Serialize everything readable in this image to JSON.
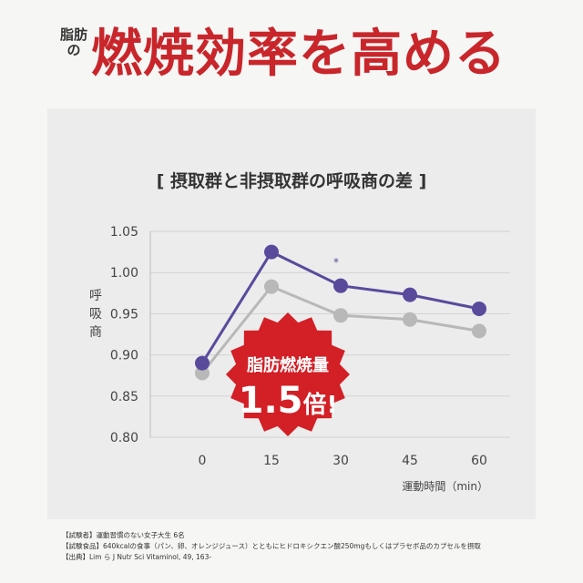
{
  "headline": {
    "prefix": "脂肪の",
    "main": "燃焼効率を高める"
  },
  "badge": {
    "line1": "脂肪燃焼量",
    "number": "1.5",
    "unit": "倍!"
  },
  "significance_mark": "*",
  "footnotes": [
    "【試験者】運動習慣のない女子大生 6名",
    "【試験食品】640kcalの食事（パン、卵、オレンジジュース）とともにヒドロキシクエン酸250mgもしくはプラセボ品のカプセルを摂取",
    "【出典】Lim ら J Nutr Sci Vitaminol, 49, 163-"
  ],
  "colors": {
    "headline_red": "#c8262b",
    "badge_red": "#d31f26",
    "series_intake": "#5a4a9c",
    "series_placebo": "#b8b8b8"
  },
  "chart_data": {
    "type": "line",
    "title": "[ 摂取群と非摂取群の呼吸商の差 ]",
    "ylabel": "呼吸商",
    "xlabel": "運動時間（min）",
    "x": [
      0,
      15,
      30,
      45,
      60
    ],
    "x_tick_labels": [
      "0",
      "15",
      "30",
      "45",
      "60"
    ],
    "y_ticks": [
      "0.80",
      "0.85",
      "0.90",
      "0.95",
      "1.00",
      "1.05"
    ],
    "ylim": [
      0.8,
      1.05
    ],
    "grid": "horizontal",
    "series": [
      {
        "values": [
          0.89,
          1.025,
          0.984,
          0.973,
          0.956
        ],
        "color": "#5a4a9c"
      },
      {
        "values": [
          0.878,
          0.983,
          0.948,
          0.943,
          0.929
        ],
        "color": "#b8b8b8"
      }
    ]
  }
}
